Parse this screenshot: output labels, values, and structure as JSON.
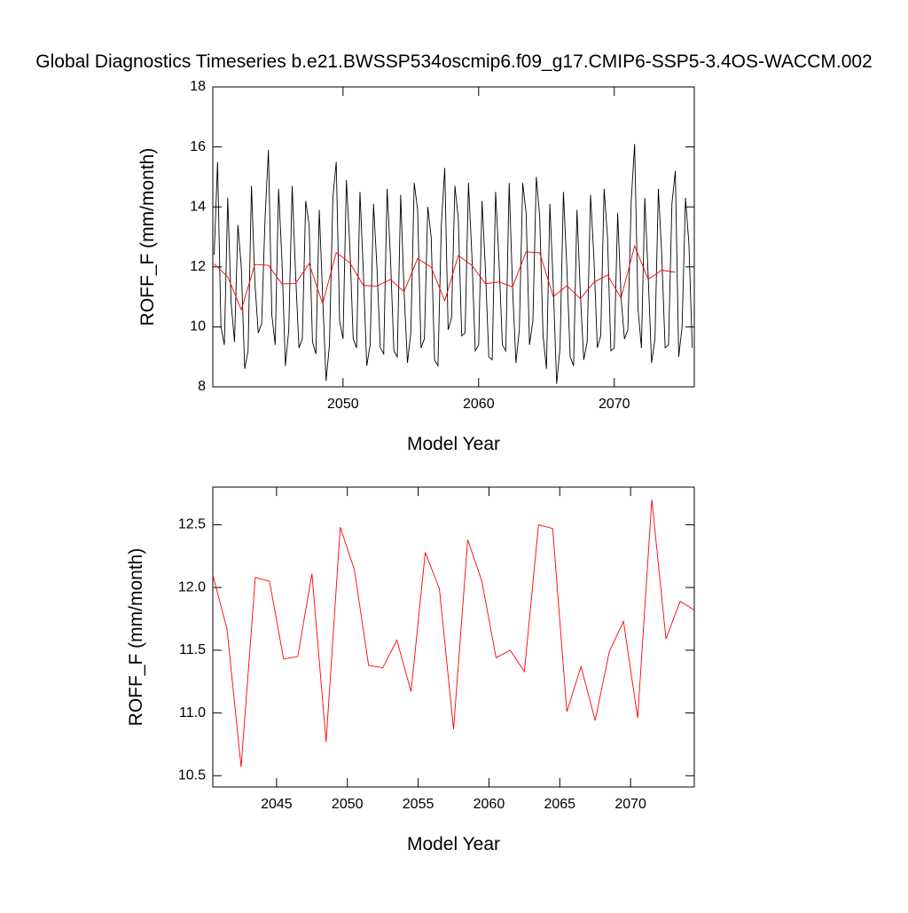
{
  "chart_data": [
    {
      "type": "line",
      "title": "Global Diagnostics Timeseries b.e21.BWSSP534oscmip6.f09_g17.CMIP6-SSP5-3.4OS-WACCM.002",
      "y_label": "ROFF_F (mm/month)",
      "x_label": "Model Year",
      "xlim": [
        2040.4,
        2075.9
      ],
      "xticks": [
        2050,
        2060,
        2070
      ],
      "ylim": [
        8,
        18
      ],
      "yticks": [
        8,
        10,
        12,
        14,
        16,
        18
      ],
      "series": [
        {
          "color": "#000000",
          "x": [
            2040.5,
            2040.75,
            2041,
            2041.25,
            2041.5,
            2041.75,
            2042,
            2042.25,
            2042.5,
            2042.75,
            2043,
            2043.25,
            2043.5,
            2043.75,
            2044,
            2044.25,
            2044.5,
            2044.75,
            2045,
            2045.25,
            2045.5,
            2045.75,
            2046,
            2046.25,
            2046.5,
            2046.75,
            2047,
            2047.25,
            2047.5,
            2047.75,
            2048,
            2048.25,
            2048.5,
            2048.75,
            2049,
            2049.25,
            2049.5,
            2049.75,
            2050,
            2050.25,
            2050.5,
            2050.75,
            2051,
            2051.25,
            2051.5,
            2051.75,
            2052,
            2052.25,
            2052.5,
            2052.75,
            2053,
            2053.25,
            2053.5,
            2053.75,
            2054,
            2054.25,
            2054.5,
            2054.75,
            2055,
            2055.25,
            2055.5,
            2055.75,
            2056,
            2056.25,
            2056.5,
            2056.75,
            2057,
            2057.25,
            2057.5,
            2057.75,
            2058,
            2058.25,
            2058.5,
            2058.75,
            2059,
            2059.25,
            2059.5,
            2059.75,
            2060,
            2060.25,
            2060.5,
            2060.75,
            2061,
            2061.25,
            2061.5,
            2061.75,
            2062,
            2062.25,
            2062.5,
            2062.75,
            2063,
            2063.25,
            2063.5,
            2063.75,
            2064,
            2064.25,
            2064.5,
            2064.75,
            2065,
            2065.25,
            2065.5,
            2065.75,
            2066,
            2066.25,
            2066.5,
            2066.75,
            2067,
            2067.25,
            2067.5,
            2067.75,
            2068,
            2068.25,
            2068.5,
            2068.75,
            2069,
            2069.25,
            2069.5,
            2069.75,
            2070,
            2070.25,
            2070.5,
            2070.75,
            2071,
            2071.25,
            2071.5,
            2071.75,
            2072,
            2072.25,
            2072.5,
            2072.75,
            2073,
            2073.25,
            2073.5,
            2073.75,
            2074,
            2074.25,
            2074.5,
            2074.75,
            2075,
            2075.25,
            2075.5,
            2075.75
          ],
          "values": [
            12.4,
            15.5,
            10.0,
            9.4,
            14.3,
            10.8,
            9.5,
            13.4,
            12.0,
            8.6,
            9.2,
            14.7,
            11.5,
            9.8,
            10.1,
            13.6,
            15.9,
            10.4,
            9.4,
            14.6,
            12.2,
            8.7,
            9.9,
            14.7,
            11.8,
            9.3,
            9.6,
            14.2,
            13.4,
            9.5,
            9.1,
            13.9,
            11.0,
            8.2,
            9.4,
            14.3,
            15.5,
            10.2,
            9.6,
            14.9,
            12.7,
            9.6,
            9.3,
            14.5,
            11.8,
            8.7,
            9.4,
            14.1,
            12.0,
            9.3,
            9.1,
            14.6,
            12.3,
            9.2,
            9.0,
            14.4,
            11.2,
            8.8,
            9.8,
            14.8,
            13.9,
            9.3,
            9.6,
            14.0,
            13.0,
            8.9,
            8.7,
            13.4,
            15.3,
            9.9,
            10.3,
            14.7,
            13.6,
            9.7,
            9.8,
            14.8,
            12.4,
            9.2,
            9.4,
            14.2,
            11.9,
            9.0,
            8.9,
            14.5,
            12.2,
            9.4,
            9.2,
            14.8,
            11.3,
            8.8,
            9.9,
            14.8,
            13.8,
            9.4,
            10.2,
            15.0,
            13.7,
            9.7,
            8.6,
            14.1,
            11.4,
            8.1,
            9.3,
            14.5,
            12.0,
            9.0,
            8.7,
            13.9,
            11.1,
            8.9,
            9.5,
            14.4,
            12.3,
            9.3,
            9.7,
            14.6,
            13.0,
            9.2,
            9.3,
            13.8,
            11.0,
            9.6,
            9.9,
            14.2,
            16.1,
            10.6,
            9.3,
            14.3,
            11.7,
            8.8,
            9.6,
            14.6,
            12.4,
            9.3,
            9.4,
            14.1,
            15.2,
            9.0,
            10.0,
            14.3,
            12.8,
            9.3
          ]
        },
        {
          "color": "#ff0000",
          "x": [
            2040.5,
            2041.5,
            2042.5,
            2043.5,
            2044.5,
            2045.5,
            2046.5,
            2047.5,
            2048.5,
            2049.5,
            2050.5,
            2051.5,
            2052.5,
            2053.5,
            2054.5,
            2055.5,
            2056.5,
            2057.5,
            2058.5,
            2059.5,
            2060.5,
            2061.5,
            2062.5,
            2063.5,
            2064.5,
            2065.5,
            2066.5,
            2067.5,
            2068.5,
            2069.5,
            2070.5,
            2071.5,
            2072.5,
            2073.5,
            2074.5
          ],
          "values": [
            12.1,
            11.67,
            10.57,
            12.08,
            12.05,
            11.43,
            11.45,
            12.11,
            10.77,
            12.48,
            12.14,
            11.38,
            11.36,
            11.58,
            11.17,
            12.28,
            11.99,
            10.87,
            12.38,
            12.05,
            11.44,
            11.5,
            11.33,
            12.5,
            12.47,
            11.01,
            11.37,
            10.94,
            11.49,
            11.73,
            10.96,
            12.7,
            11.59,
            11.89,
            11.82
          ]
        }
      ]
    },
    {
      "type": "line",
      "y_label": "ROFF_F (mm/month)",
      "x_label": "Model Year",
      "xlim": [
        2040.5,
        2074.5
      ],
      "xticks": [
        2045,
        2050,
        2055,
        2060,
        2065,
        2070
      ],
      "ylim": [
        10.41,
        12.8
      ],
      "yticks": [
        10.5,
        {
          "value": 11,
          "label": "11.0"
        },
        11.5,
        {
          "value": 12,
          "label": "12.0"
        },
        12.5
      ],
      "series": [
        {
          "color": "#ff0000",
          "x": [
            2040.5,
            2041.5,
            2042.5,
            2043.5,
            2044.5,
            2045.5,
            2046.5,
            2047.5,
            2048.5,
            2049.5,
            2050.5,
            2051.5,
            2052.5,
            2053.5,
            2054.5,
            2055.5,
            2056.5,
            2057.5,
            2058.5,
            2059.5,
            2060.5,
            2061.5,
            2062.5,
            2063.5,
            2064.5,
            2065.5,
            2066.5,
            2067.5,
            2068.5,
            2069.5,
            2070.5,
            2071.5,
            2072.5,
            2073.5,
            2074.5
          ],
          "values": [
            12.1,
            11.67,
            10.57,
            12.08,
            12.05,
            11.43,
            11.45,
            12.11,
            10.77,
            12.48,
            12.14,
            11.38,
            11.36,
            11.58,
            11.17,
            12.28,
            11.99,
            10.87,
            12.38,
            12.05,
            11.44,
            11.5,
            11.33,
            12.5,
            12.47,
            11.01,
            11.37,
            10.94,
            11.49,
            11.73,
            10.96,
            12.7,
            11.59,
            11.89,
            11.82
          ]
        }
      ]
    }
  ]
}
